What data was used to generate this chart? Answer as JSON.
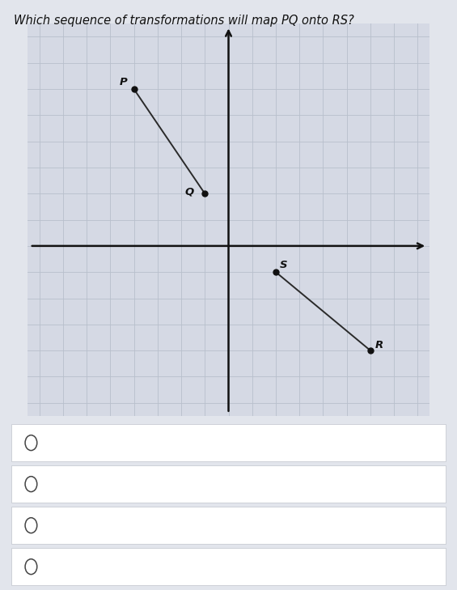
{
  "title": "Which sequence of transformations will map PQ onto RS?",
  "title_fontsize": 10.5,
  "P": [
    -4,
    6
  ],
  "Q": [
    -1,
    2
  ],
  "S": [
    2,
    -1
  ],
  "R": [
    6,
    -4
  ],
  "xlim": [
    -8.5,
    8.5
  ],
  "ylim": [
    -6.5,
    8.5
  ],
  "grid_color": "#b8bfcc",
  "axis_color": "#111111",
  "line_color": "#2a2a2a",
  "dot_color": "#111111",
  "bg_color": "#e2e5ec",
  "plot_bg": "#d5d9e4",
  "white": "#ffffff"
}
